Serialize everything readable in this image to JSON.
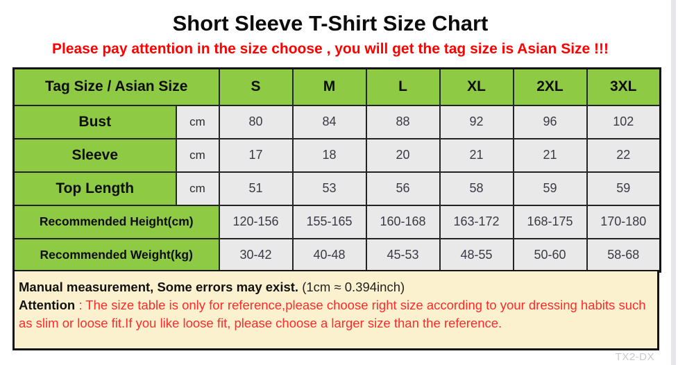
{
  "title": "Short Sleeve T-Shirt Size Chart",
  "subtitle": "Please pay attention in the size choose , you will get the tag size is Asian Size !!!",
  "table": {
    "corner_label": "Tag Size / Asian Size",
    "sizes": [
      "S",
      "M",
      "L",
      "XL",
      "2XL",
      "3XL"
    ],
    "rows": [
      {
        "label": "Bust",
        "unit": "cm",
        "values": [
          "80",
          "84",
          "88",
          "92",
          "96",
          "102"
        ]
      },
      {
        "label": "Sleeve",
        "unit": "cm",
        "values": [
          "17",
          "18",
          "20",
          "21",
          "21",
          "22"
        ]
      },
      {
        "label": "Top Length",
        "unit": "cm",
        "values": [
          "51",
          "53",
          "56",
          "58",
          "59",
          "59"
        ]
      }
    ],
    "range_rows": [
      {
        "label": "Recommended Height(cm)",
        "values": [
          "120-156",
          "155-165",
          "160-168",
          "163-172",
          "168-175",
          "170-180"
        ]
      },
      {
        "label": "Recommended Weight(kg)",
        "values": [
          "30-42",
          "40-48",
          "45-53",
          "48-55",
          "50-60",
          "58-68"
        ]
      }
    ]
  },
  "note": {
    "measurement_bold": "Manual measurement, Some errors may exist.",
    "measurement_regular": " (1cm ≈ 0.394inch)",
    "attention_label": "Attention",
    "attention_separator": " : ",
    "attention_text": "The size table is only for reference,please choose right size according to your dressing habits such as slim or loose fit.If you like loose fit, please choose a larger size than the reference."
  },
  "watermark": "TX2-DX",
  "colors": {
    "header_green": "#8fca45",
    "cell_gray": "#e9e9e9",
    "note_cream": "#fcf1ce",
    "alert_red": "#ff0000",
    "attention_red": "#fd2b2b",
    "border_dark": "#141414",
    "watermark_gray": "#c9c9cb"
  }
}
